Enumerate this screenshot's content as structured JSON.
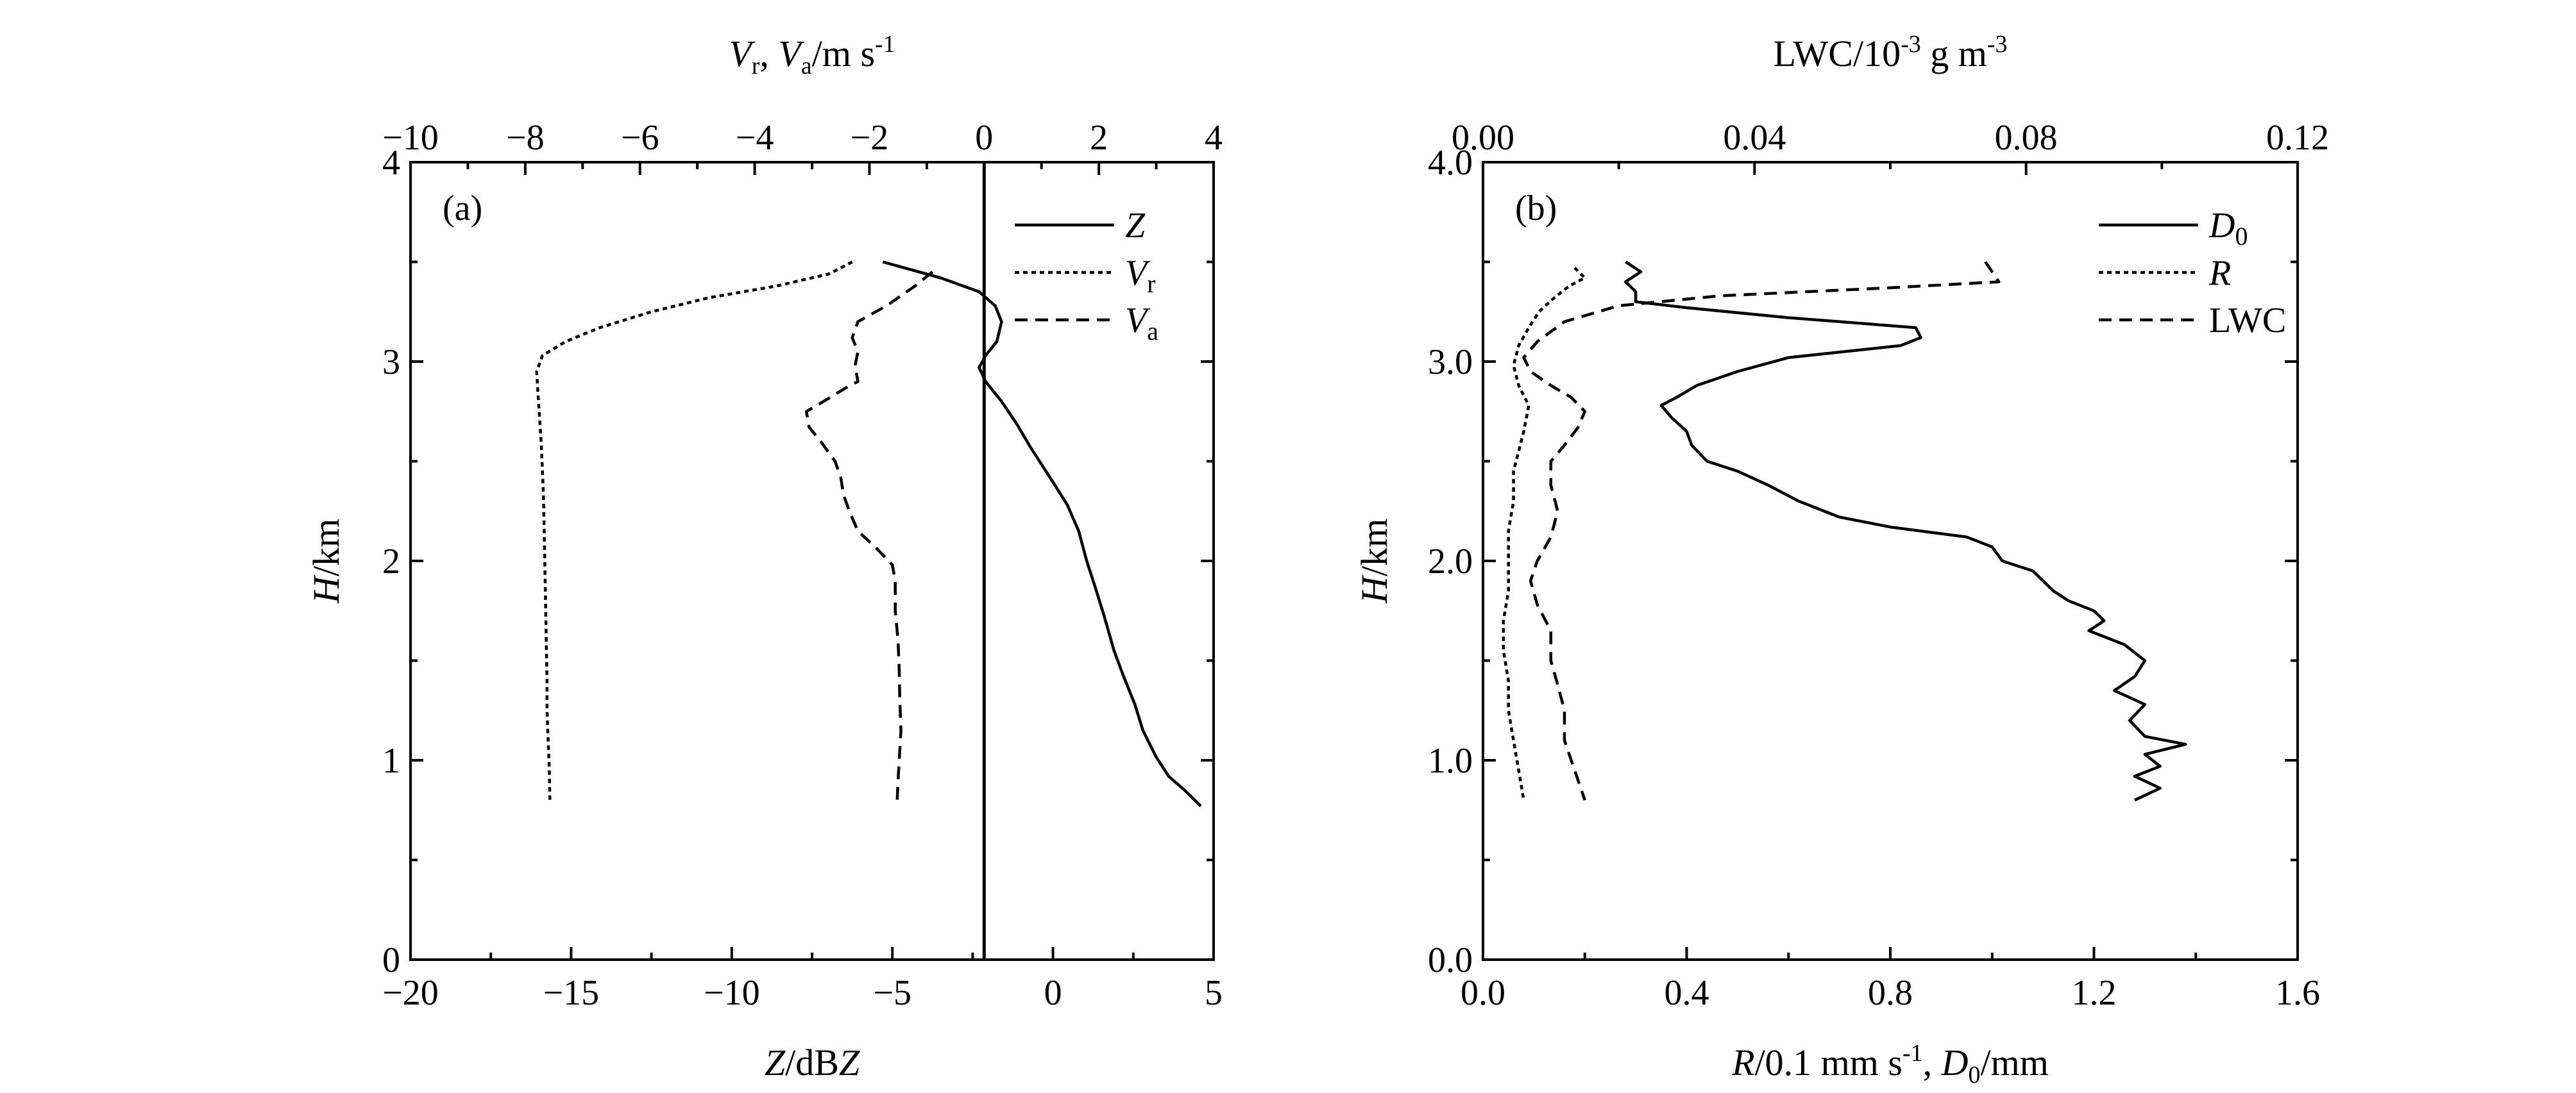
{
  "chart_data": [
    {
      "type": "line",
      "panel_label": "(a)",
      "ylabel_italic": "H",
      "ylabel_rest": "/km",
      "xlabel_bottom": {
        "italic1": "Z",
        "rest": "/dB",
        "italic2": "Z"
      },
      "xlabel_top": {
        "v1": "V",
        "s1": "r",
        "sep": ", ",
        "v2": "V",
        "s2": "a",
        "rest": "/m s",
        "exp": "-1"
      },
      "ylim": [
        0,
        4
      ],
      "xlim_bottom": [
        -20,
        5
      ],
      "xlim_top": [
        -10,
        4
      ],
      "yticks": [
        0,
        1,
        2,
        3,
        4
      ],
      "ytick_labels": [
        "0",
        "1",
        "2",
        "3",
        "4"
      ],
      "xticks_bottom": [
        -20,
        -15,
        -10,
        -5,
        0,
        5
      ],
      "xtick_labels_bottom": [
        "−20",
        "−15",
        "−10",
        "−5",
        "0",
        "5"
      ],
      "xticks_top": [
        -10,
        -8,
        -6,
        -4,
        -2,
        0,
        2,
        4
      ],
      "xtick_labels_top": [
        "−10",
        "−8",
        "−6",
        "−4",
        "−2",
        "0",
        "2",
        "4"
      ],
      "reference_line_top_x": 0,
      "legend_position": "top-right",
      "series": [
        {
          "name": "Z",
          "name_subscript": "",
          "axis": "bottom",
          "dash": "solid",
          "points": [
            [
              -5.3,
              3.5
            ],
            [
              -3.5,
              3.42
            ],
            [
              -2.3,
              3.35
            ],
            [
              -1.8,
              3.28
            ],
            [
              -1.6,
              3.2
            ],
            [
              -1.75,
              3.1
            ],
            [
              -2.1,
              3.03
            ],
            [
              -2.3,
              2.97
            ],
            [
              -2.1,
              2.9
            ],
            [
              -1.6,
              2.8
            ],
            [
              -1.1,
              2.68
            ],
            [
              -0.7,
              2.57
            ],
            [
              -0.3,
              2.47
            ],
            [
              0.1,
              2.37
            ],
            [
              0.45,
              2.28
            ],
            [
              0.8,
              2.15
            ],
            [
              1.05,
              2.0
            ],
            [
              1.35,
              1.85
            ],
            [
              1.6,
              1.72
            ],
            [
              1.9,
              1.55
            ],
            [
              2.2,
              1.42
            ],
            [
              2.55,
              1.28
            ],
            [
              2.8,
              1.15
            ],
            [
              3.2,
              1.02
            ],
            [
              3.6,
              0.92
            ],
            [
              4.1,
              0.85
            ],
            [
              4.6,
              0.77
            ]
          ]
        },
        {
          "name": "V",
          "name_subscript": "r",
          "axis": "top",
          "dash": "dotted",
          "points": [
            [
              -2.3,
              3.5
            ],
            [
              -2.7,
              3.44
            ],
            [
              -3.6,
              3.38
            ],
            [
              -4.8,
              3.32
            ],
            [
              -5.8,
              3.25
            ],
            [
              -6.7,
              3.17
            ],
            [
              -7.3,
              3.1
            ],
            [
              -7.7,
              3.03
            ],
            [
              -7.8,
              2.95
            ],
            [
              -7.78,
              2.85
            ],
            [
              -7.75,
              2.72
            ],
            [
              -7.72,
              2.58
            ],
            [
              -7.7,
              2.45
            ],
            [
              -7.68,
              2.3
            ],
            [
              -7.67,
              2.15
            ],
            [
              -7.66,
              2.0
            ],
            [
              -7.65,
              1.85
            ],
            [
              -7.64,
              1.7
            ],
            [
              -7.63,
              1.55
            ],
            [
              -7.62,
              1.4
            ],
            [
              -7.62,
              1.25
            ],
            [
              -7.6,
              1.1
            ],
            [
              -7.58,
              0.95
            ],
            [
              -7.57,
              0.8
            ]
          ]
        },
        {
          "name": "V",
          "name_subscript": "a",
          "axis": "top",
          "dash": "dashed",
          "points": [
            [
              -0.9,
              3.45
            ],
            [
              -1.2,
              3.38
            ],
            [
              -1.7,
              3.28
            ],
            [
              -2.2,
              3.2
            ],
            [
              -2.3,
              3.12
            ],
            [
              -2.2,
              3.05
            ],
            [
              -2.25,
              2.98
            ],
            [
              -2.2,
              2.9
            ],
            [
              -2.4,
              2.87
            ],
            [
              -2.8,
              2.8
            ],
            [
              -3.1,
              2.75
            ],
            [
              -3.05,
              2.67
            ],
            [
              -2.85,
              2.6
            ],
            [
              -2.6,
              2.5
            ],
            [
              -2.5,
              2.42
            ],
            [
              -2.45,
              2.33
            ],
            [
              -2.35,
              2.25
            ],
            [
              -2.2,
              2.15
            ],
            [
              -1.9,
              2.07
            ],
            [
              -1.6,
              1.98
            ],
            [
              -1.55,
              1.9
            ],
            [
              -1.55,
              1.75
            ],
            [
              -1.5,
              1.6
            ],
            [
              -1.48,
              1.45
            ],
            [
              -1.47,
              1.3
            ],
            [
              -1.45,
              1.15
            ],
            [
              -1.48,
              1.0
            ],
            [
              -1.5,
              0.9
            ],
            [
              -1.52,
              0.78
            ]
          ]
        }
      ]
    },
    {
      "type": "line",
      "panel_label": "(b)",
      "ylabel_italic": "H",
      "ylabel_rest": "/km",
      "xlabel_bottom": {
        "v1": "R",
        "mid": "/0.1 mm s",
        "exp": "-1",
        "sep": ",  ",
        "v2": "D",
        "sub": "0",
        "rest": "/mm"
      },
      "xlabel_top": {
        "pre": "LWC/10",
        "exp1": "-3",
        "mid": " g m",
        "exp2": "-3"
      },
      "ylim": [
        0.0,
        4.0
      ],
      "xlim_bottom": [
        0.0,
        1.6
      ],
      "xlim_top": [
        0.0,
        0.12
      ],
      "yticks": [
        0,
        1,
        2,
        3,
        4
      ],
      "ytick_labels": [
        "0.0",
        "1.0",
        "2.0",
        "3.0",
        "4.0"
      ],
      "xticks_bottom": [
        0.0,
        0.4,
        0.8,
        1.2,
        1.6
      ],
      "xtick_labels_bottom": [
        "0.0",
        "0.4",
        "0.8",
        "1.2",
        "1.6"
      ],
      "xticks_top": [
        0.0,
        0.04,
        0.08,
        0.12
      ],
      "xtick_labels_top": [
        "0.00",
        "0.04",
        "0.08",
        "0.12"
      ],
      "legend_position": "top-right",
      "series": [
        {
          "name": "D",
          "name_subscript": "0",
          "axis": "bottom",
          "dash": "solid",
          "points": [
            [
              0.28,
              3.5
            ],
            [
              0.31,
              3.45
            ],
            [
              0.28,
              3.4
            ],
            [
              0.3,
              3.35
            ],
            [
              0.3,
              3.3
            ],
            [
              0.4,
              3.27
            ],
            [
              0.6,
              3.22
            ],
            [
              0.85,
              3.17
            ],
            [
              0.86,
              3.12
            ],
            [
              0.82,
              3.08
            ],
            [
              0.6,
              3.02
            ],
            [
              0.5,
              2.95
            ],
            [
              0.42,
              2.88
            ],
            [
              0.38,
              2.82
            ],
            [
              0.35,
              2.78
            ],
            [
              0.37,
              2.72
            ],
            [
              0.4,
              2.65
            ],
            [
              0.41,
              2.58
            ],
            [
              0.44,
              2.5
            ],
            [
              0.5,
              2.45
            ],
            [
              0.56,
              2.38
            ],
            [
              0.62,
              2.3
            ],
            [
              0.7,
              2.22
            ],
            [
              0.8,
              2.17
            ],
            [
              0.95,
              2.12
            ],
            [
              1.0,
              2.07
            ],
            [
              1.02,
              2.0
            ],
            [
              1.08,
              1.95
            ],
            [
              1.1,
              1.9
            ],
            [
              1.12,
              1.85
            ],
            [
              1.15,
              1.8
            ],
            [
              1.2,
              1.75
            ],
            [
              1.22,
              1.7
            ],
            [
              1.19,
              1.65
            ],
            [
              1.26,
              1.58
            ],
            [
              1.3,
              1.5
            ],
            [
              1.28,
              1.42
            ],
            [
              1.24,
              1.35
            ],
            [
              1.3,
              1.28
            ],
            [
              1.27,
              1.2
            ],
            [
              1.3,
              1.12
            ],
            [
              1.38,
              1.08
            ],
            [
              1.3,
              1.03
            ],
            [
              1.33,
              0.97
            ],
            [
              1.28,
              0.92
            ],
            [
              1.33,
              0.86
            ],
            [
              1.28,
              0.8
            ]
          ]
        },
        {
          "name": "R",
          "name_subscript": "",
          "axis": "bottom",
          "dash": "dotted",
          "points": [
            [
              0.18,
              3.47
            ],
            [
              0.2,
              3.42
            ],
            [
              0.17,
              3.38
            ],
            [
              0.14,
              3.32
            ],
            [
              0.11,
              3.25
            ],
            [
              0.09,
              3.17
            ],
            [
              0.07,
              3.08
            ],
            [
              0.06,
              2.98
            ],
            [
              0.07,
              2.88
            ],
            [
              0.09,
              2.78
            ],
            [
              0.08,
              2.65
            ],
            [
              0.07,
              2.55
            ],
            [
              0.06,
              2.45
            ],
            [
              0.06,
              2.3
            ],
            [
              0.05,
              2.15
            ],
            [
              0.05,
              2.0
            ],
            [
              0.05,
              1.85
            ],
            [
              0.04,
              1.7
            ],
            [
              0.04,
              1.55
            ],
            [
              0.05,
              1.4
            ],
            [
              0.05,
              1.25
            ],
            [
              0.06,
              1.1
            ],
            [
              0.07,
              0.95
            ],
            [
              0.08,
              0.8
            ]
          ]
        },
        {
          "name": "LWC",
          "name_subscript": "",
          "axis": "top",
          "dash": "dashed",
          "points": [
            [
              0.074,
              3.5
            ],
            [
              0.075,
              3.45
            ],
            [
              0.076,
              3.4
            ],
            [
              0.06,
              3.37
            ],
            [
              0.035,
              3.33
            ],
            [
              0.02,
              3.28
            ],
            [
              0.012,
              3.2
            ],
            [
              0.008,
              3.1
            ],
            [
              0.006,
              3.02
            ],
            [
              0.007,
              2.95
            ],
            [
              0.01,
              2.88
            ],
            [
              0.013,
              2.82
            ],
            [
              0.015,
              2.75
            ],
            [
              0.014,
              2.67
            ],
            [
              0.012,
              2.58
            ],
            [
              0.01,
              2.5
            ],
            [
              0.01,
              2.38
            ],
            [
              0.011,
              2.25
            ],
            [
              0.01,
              2.12
            ],
            [
              0.008,
              2.0
            ],
            [
              0.007,
              1.9
            ],
            [
              0.008,
              1.78
            ],
            [
              0.01,
              1.65
            ],
            [
              0.01,
              1.5
            ],
            [
              0.011,
              1.38
            ],
            [
              0.012,
              1.25
            ],
            [
              0.012,
              1.1
            ],
            [
              0.013,
              1.0
            ],
            [
              0.014,
              0.9
            ],
            [
              0.015,
              0.8
            ]
          ]
        }
      ]
    }
  ]
}
